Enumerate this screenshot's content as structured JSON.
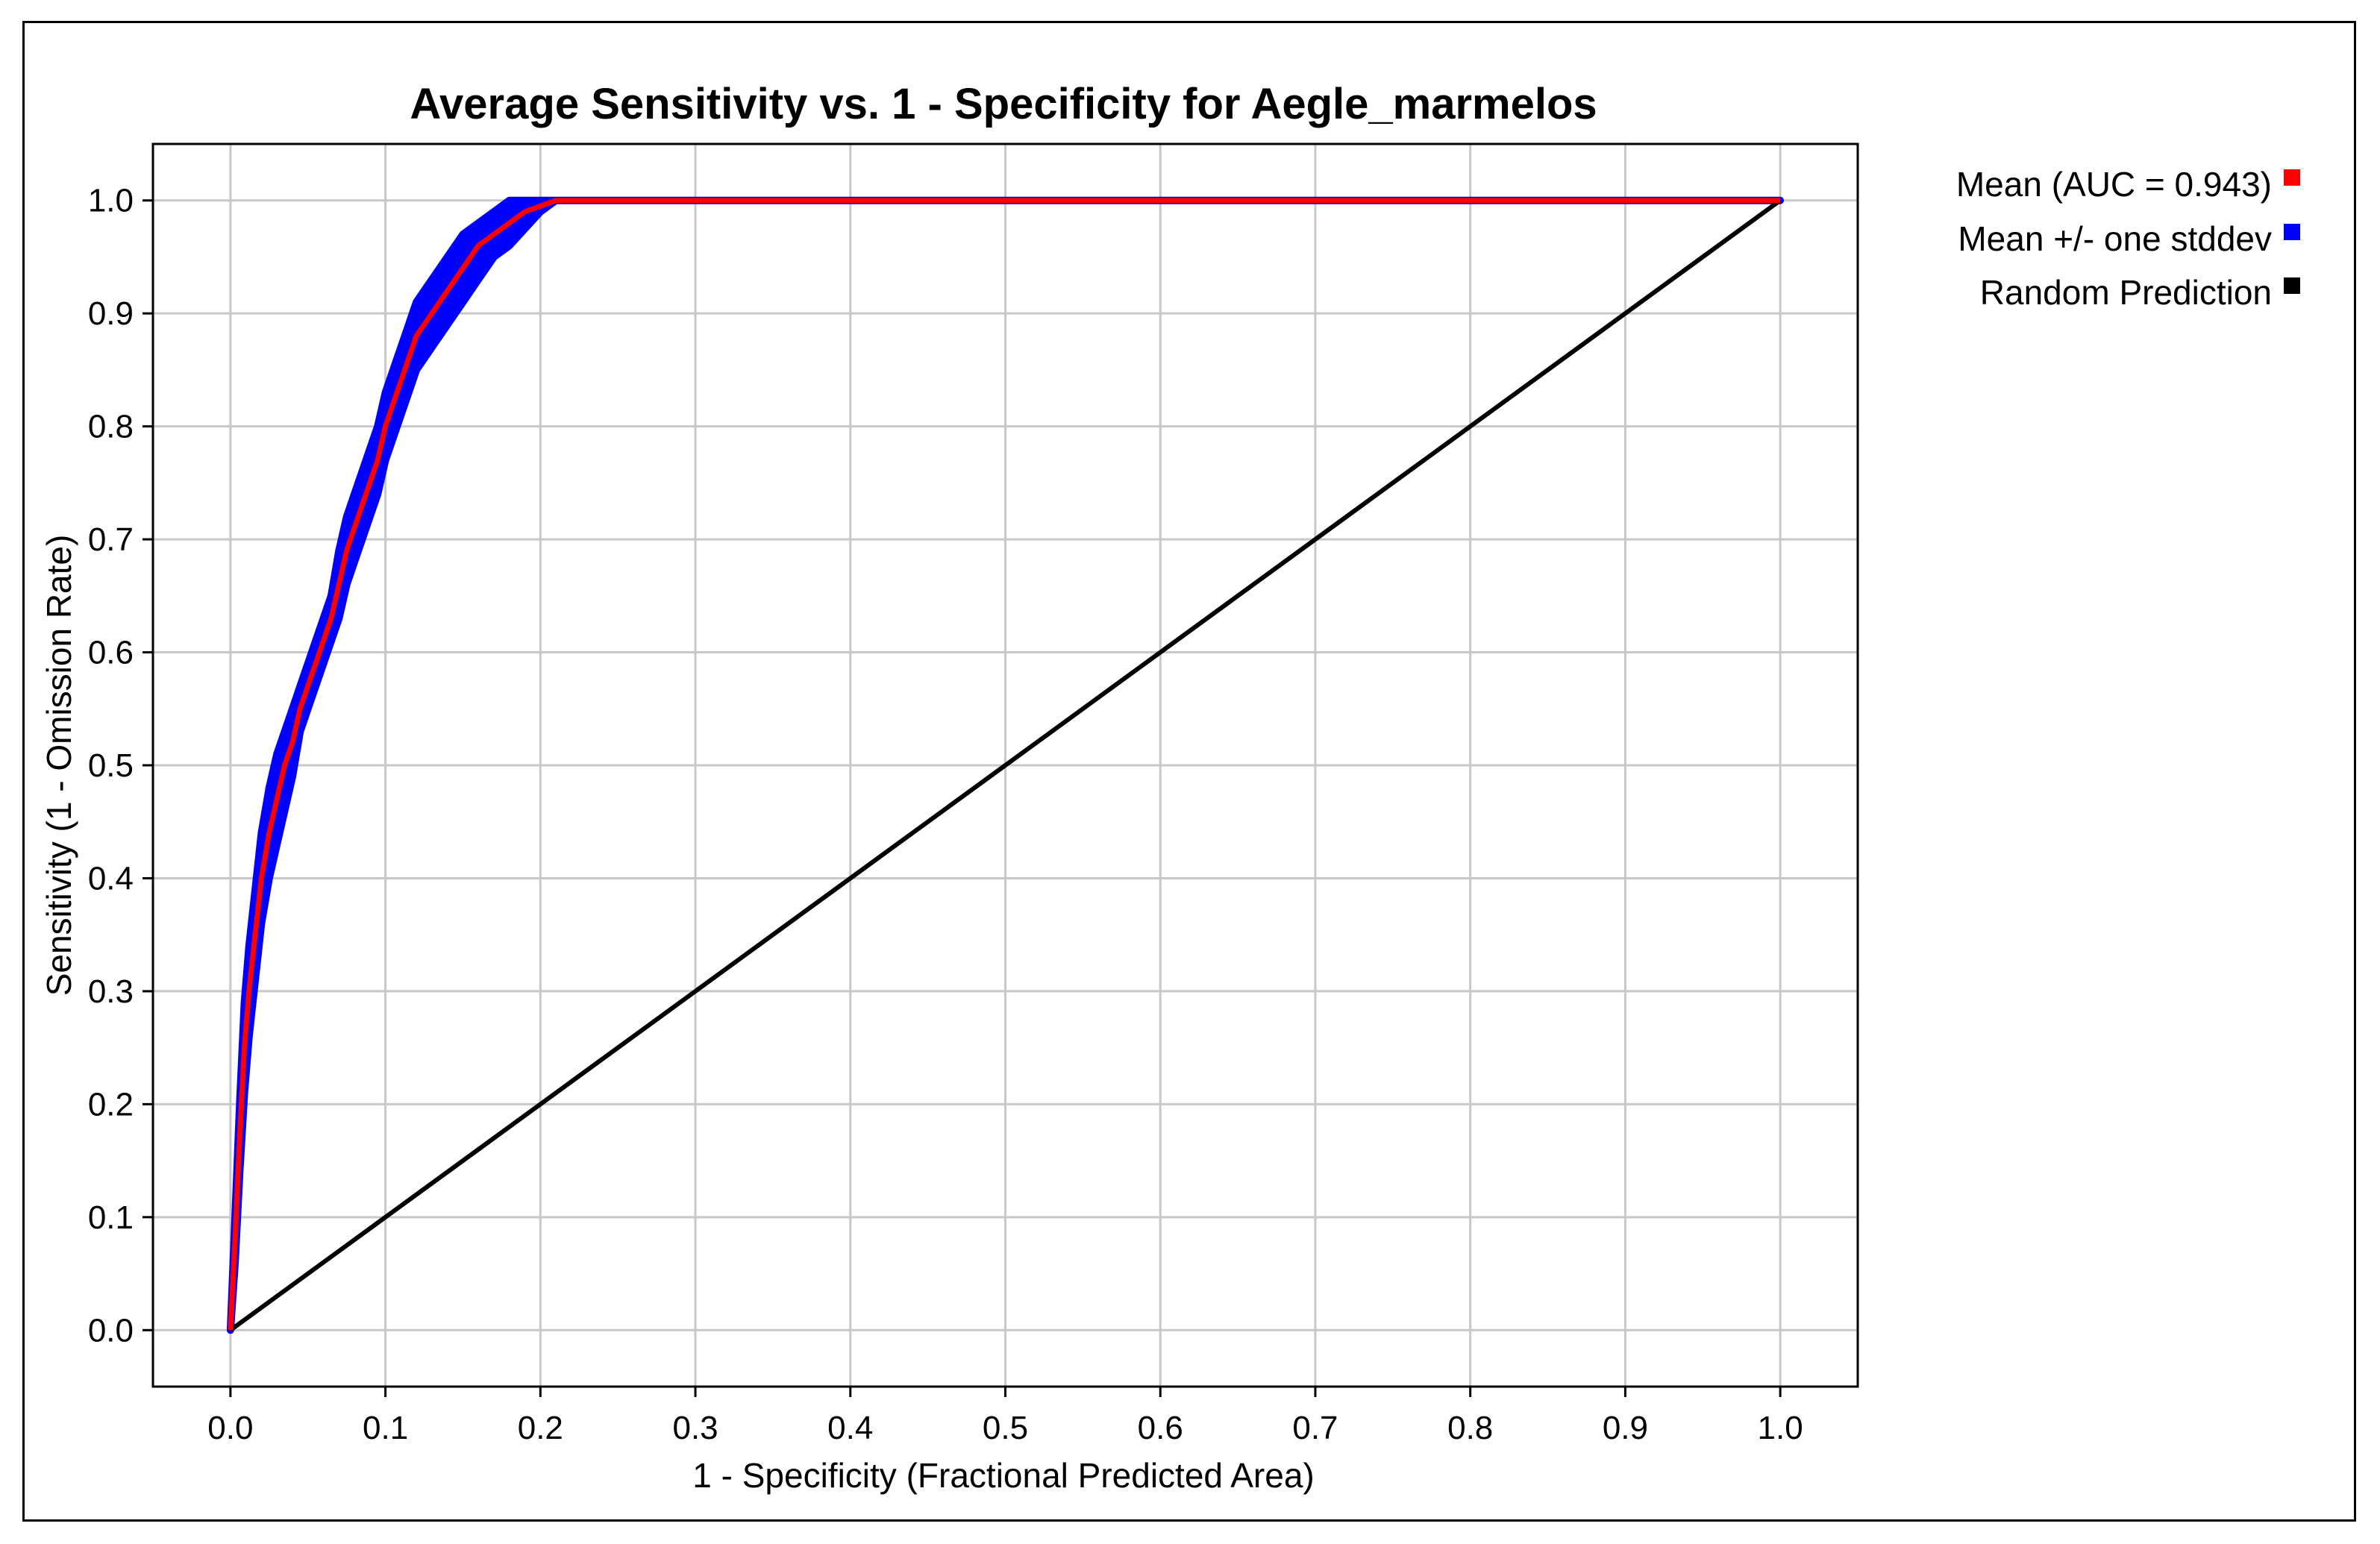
{
  "chart_data": {
    "type": "line",
    "title": "Average Sensitivity vs. 1 - Specificity for Aegle_marmelos",
    "xlabel": "1 - Specificity (Fractional Predicted Area)",
    "ylabel": "Sensitivity (1 - Omission Rate)",
    "xlim": [
      -0.05,
      1.05
    ],
    "ylim": [
      -0.05,
      1.05
    ],
    "x_ticks": [
      "0.0",
      "0.1",
      "0.2",
      "0.3",
      "0.4",
      "0.5",
      "0.6",
      "0.7",
      "0.8",
      "0.9",
      "1.0"
    ],
    "y_ticks": [
      "0.0",
      "0.1",
      "0.2",
      "0.3",
      "0.4",
      "0.5",
      "0.6",
      "0.7",
      "0.8",
      "0.9",
      "1.0"
    ],
    "grid": true,
    "legend_position": "right-top",
    "series": [
      {
        "name": "Mean (AUC = 0.943)",
        "color": "#ff0000",
        "x": [
          0.0,
          0.003,
          0.006,
          0.009,
          0.012,
          0.016,
          0.02,
          0.025,
          0.03,
          0.035,
          0.04,
          0.045,
          0.05,
          0.055,
          0.06,
          0.065,
          0.07,
          0.075,
          0.08,
          0.085,
          0.09,
          0.095,
          0.1,
          0.105,
          0.11,
          0.115,
          0.12,
          0.13,
          0.14,
          0.15,
          0.16,
          0.17,
          0.18,
          0.19,
          0.2,
          0.21,
          0.3,
          0.5,
          0.63,
          0.7,
          1.0
        ],
        "y": [
          0.0,
          0.08,
          0.17,
          0.25,
          0.3,
          0.35,
          0.4,
          0.44,
          0.47,
          0.5,
          0.52,
          0.55,
          0.57,
          0.59,
          0.61,
          0.63,
          0.66,
          0.69,
          0.71,
          0.73,
          0.75,
          0.77,
          0.8,
          0.82,
          0.84,
          0.86,
          0.88,
          0.9,
          0.92,
          0.94,
          0.96,
          0.97,
          0.98,
          0.99,
          0.995,
          1.0,
          1.0,
          1.0,
          1.0,
          1.0,
          1.0
        ]
      },
      {
        "name": "Mean +/- one stddev",
        "color": "#0000ff",
        "x": [
          0.0,
          0.003,
          0.006,
          0.009,
          0.012,
          0.016,
          0.02,
          0.025,
          0.03,
          0.035,
          0.04,
          0.045,
          0.05,
          0.055,
          0.06,
          0.065,
          0.07,
          0.075,
          0.08,
          0.085,
          0.09,
          0.095,
          0.1,
          0.105,
          0.11,
          0.115,
          0.12,
          0.13,
          0.14,
          0.15,
          0.16,
          0.17,
          0.18,
          0.19,
          0.2,
          0.21,
          0.3,
          0.5,
          0.63,
          0.7,
          1.0
        ],
        "upper": [
          0.0,
          0.1,
          0.2,
          0.29,
          0.34,
          0.39,
          0.44,
          0.48,
          0.51,
          0.53,
          0.55,
          0.57,
          0.59,
          0.61,
          0.63,
          0.65,
          0.69,
          0.72,
          0.74,
          0.76,
          0.78,
          0.8,
          0.83,
          0.85,
          0.87,
          0.89,
          0.91,
          0.93,
          0.95,
          0.97,
          0.98,
          0.99,
          1.0,
          1.0,
          1.0,
          1.0,
          1.0,
          1.0,
          1.0,
          1.0,
          1.0
        ],
        "lower": [
          0.0,
          0.06,
          0.14,
          0.21,
          0.26,
          0.31,
          0.36,
          0.4,
          0.43,
          0.46,
          0.49,
          0.53,
          0.55,
          0.57,
          0.59,
          0.61,
          0.63,
          0.66,
          0.68,
          0.7,
          0.72,
          0.74,
          0.77,
          0.79,
          0.81,
          0.83,
          0.85,
          0.87,
          0.89,
          0.91,
          0.93,
          0.95,
          0.96,
          0.975,
          0.99,
          1.0,
          1.0,
          1.0,
          1.0,
          1.0,
          1.0
        ]
      },
      {
        "name": "Random Prediction",
        "color": "#000000",
        "x": [
          0.0,
          1.0
        ],
        "y": [
          0.0,
          1.0
        ]
      }
    ]
  }
}
